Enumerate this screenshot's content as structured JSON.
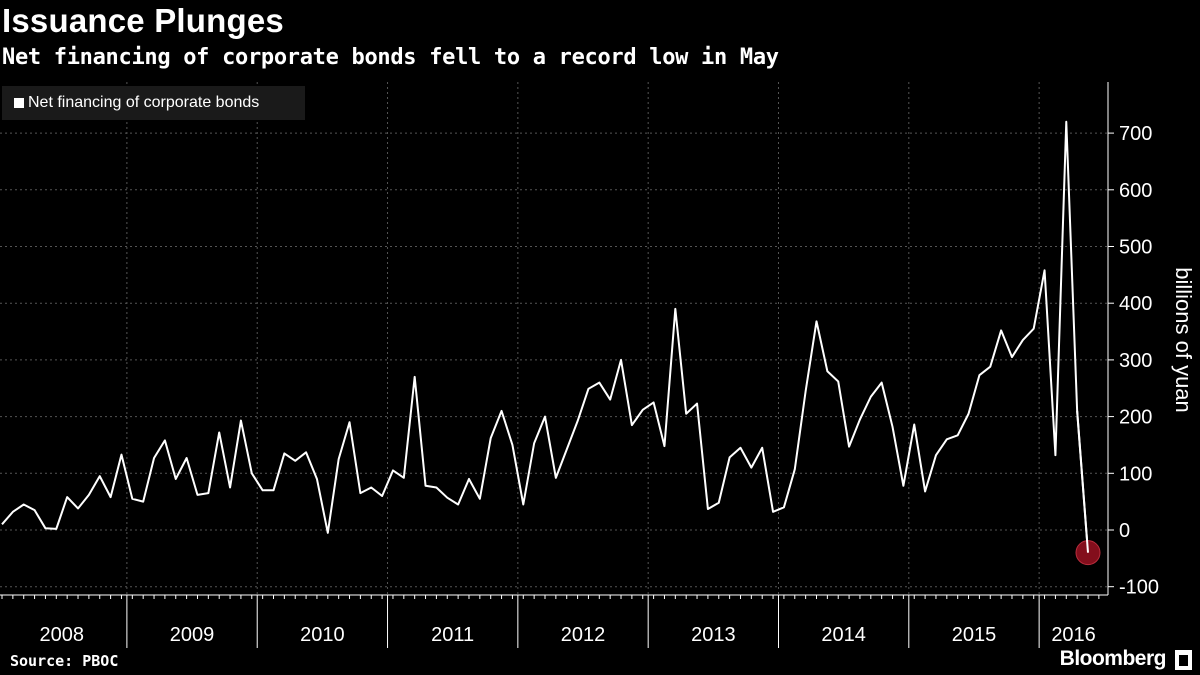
{
  "header": {
    "title": "Issuance Plunges",
    "subtitle": "Net financing of corporate bonds fell to a record low in May"
  },
  "footer": {
    "source": "Source: PBOC",
    "brand": "Bloomberg"
  },
  "colors": {
    "background": "#000000",
    "line": "#ffffff",
    "grid": "#555555",
    "highlight": "#8b0f1e"
  },
  "chart_data": {
    "type": "line",
    "title": "Issuance Plunges",
    "subtitle": "Net financing of corporate bonds fell to a record low in May",
    "ylabel": "billions of yuan",
    "xlabel": "",
    "ylim": [
      -100,
      750
    ],
    "yticks": [
      -100,
      0,
      100,
      200,
      300,
      400,
      500,
      600,
      700
    ],
    "y_axis_side": "right",
    "years": [
      "2008",
      "2009",
      "2010",
      "2011",
      "2012",
      "2013",
      "2014",
      "2015",
      "2016"
    ],
    "grid": true,
    "legend": {
      "position": "top-left"
    },
    "highlight": {
      "date": "2016-05",
      "value": -40,
      "style": "red circle"
    },
    "series": [
      {
        "name": "Net financing of corporate bonds",
        "start": "2008-01",
        "frequency": "monthly",
        "values": [
          10,
          32,
          45,
          35,
          3,
          2,
          58,
          38,
          62,
          95,
          58,
          133,
          55,
          50,
          127,
          158,
          90,
          127,
          62,
          65,
          172,
          75,
          193,
          100,
          70,
          70,
          135,
          122,
          137,
          90,
          -5,
          125,
          190,
          65,
          75,
          60,
          105,
          92,
          270,
          78,
          75,
          57,
          45,
          90,
          55,
          162,
          210,
          150,
          45,
          153,
          200,
          92,
          142,
          192,
          249,
          260,
          230,
          300,
          185,
          212,
          225,
          148,
          390,
          205,
          223,
          37,
          48,
          128,
          145,
          110,
          145,
          32,
          40,
          107,
          245,
          368,
          280,
          262,
          147,
          195,
          235,
          260,
          182,
          78,
          186,
          68,
          132,
          160,
          167,
          205,
          273,
          288,
          352,
          305,
          335,
          355,
          458,
          132,
          720,
          210,
          -40
        ]
      }
    ]
  }
}
